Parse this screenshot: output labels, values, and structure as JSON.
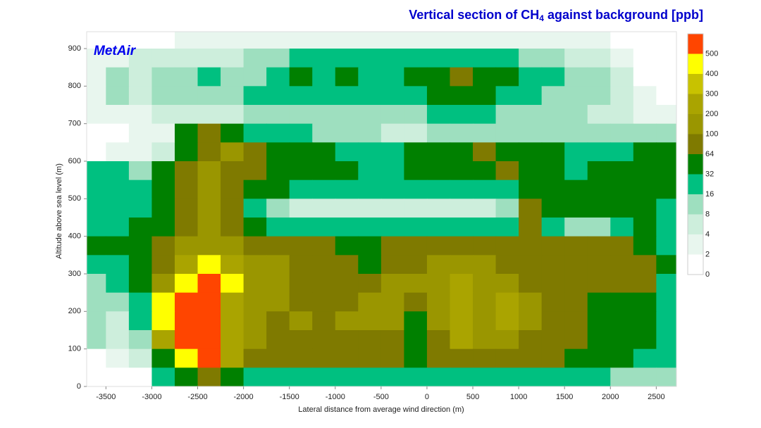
{
  "chart_data": {
    "type": "contour",
    "title": {
      "text": "Vertical section of CH",
      "subscript": "4",
      "rest": " against background [ppb]"
    },
    "logo": "MetAir",
    "xlabel": "Lateral distance from average wind direction (m)",
    "ylabel": "Altitude above sea level (m)",
    "xlim": [
      -3710,
      2720
    ],
    "ylim": [
      0,
      945
    ],
    "xticks": [
      -3500,
      -3000,
      -2500,
      -2000,
      -1500,
      -1000,
      -500,
      0,
      500,
      1000,
      1500,
      2000,
      2500
    ],
    "yticks": [
      0,
      100,
      200,
      300,
      400,
      500,
      600,
      700,
      800,
      900
    ],
    "grid": false,
    "colorbar": {
      "levels": [
        0,
        2,
        4,
        8,
        16,
        32,
        64,
        100,
        200,
        300,
        400,
        500
      ],
      "colors": [
        "#ffffff",
        "#e8f6ee",
        "#cdeedc",
        "#9edfbf",
        "#00c080",
        "#008000",
        "#7f7a00",
        "#9a9600",
        "#aaa400",
        "#c8c200",
        "#ffff00",
        "#ff4500"
      ]
    },
    "x": [
      -3625,
      -3375,
      -3125,
      -2875,
      -2625,
      -2375,
      -2125,
      -1875,
      -1625,
      -1375,
      -1125,
      -875,
      -625,
      -375,
      -125,
      125,
      375,
      625,
      875,
      1125,
      1375,
      1625,
      1875,
      2125,
      2375,
      2625
    ],
    "y": [
      925,
      875,
      825,
      775,
      725,
      675,
      625,
      575,
      525,
      475,
      425,
      375,
      325,
      275,
      225,
      175,
      125,
      75,
      25
    ],
    "z": [
      [
        1,
        1,
        1,
        1,
        3,
        3,
        3,
        3,
        3,
        3,
        3,
        3,
        3,
        3,
        3,
        3,
        3,
        3,
        3,
        3,
        3,
        3,
        3,
        1,
        1,
        1
      ],
      [
        3,
        3,
        6,
        6,
        6,
        6,
        6,
        12,
        12,
        24,
        24,
        24,
        24,
        24,
        24,
        24,
        24,
        24,
        24,
        12,
        12,
        6,
        6,
        3,
        1,
        1
      ],
      [
        3,
        12,
        6,
        12,
        12,
        24,
        12,
        12,
        24,
        48,
        24,
        48,
        24,
        24,
        48,
        48,
        80,
        48,
        48,
        24,
        24,
        12,
        12,
        6,
        1,
        1
      ],
      [
        3,
        12,
        6,
        12,
        12,
        12,
        12,
        24,
        24,
        24,
        24,
        24,
        24,
        24,
        24,
        48,
        48,
        48,
        24,
        24,
        12,
        12,
        12,
        6,
        3,
        1
      ],
      [
        3,
        3,
        3,
        6,
        6,
        6,
        6,
        12,
        12,
        12,
        12,
        12,
        12,
        12,
        12,
        24,
        24,
        24,
        12,
        12,
        12,
        12,
        6,
        6,
        3,
        3
      ],
      [
        1,
        1,
        3,
        3,
        48,
        80,
        48,
        24,
        24,
        24,
        12,
        12,
        12,
        6,
        6,
        12,
        12,
        12,
        12,
        12,
        12,
        12,
        12,
        12,
        12,
        12
      ],
      [
        1,
        3,
        3,
        6,
        48,
        80,
        150,
        80,
        48,
        48,
        48,
        24,
        24,
        24,
        48,
        48,
        48,
        80,
        48,
        48,
        48,
        24,
        24,
        24,
        48,
        48
      ],
      [
        24,
        24,
        12,
        48,
        80,
        150,
        80,
        80,
        48,
        48,
        48,
        48,
        24,
        24,
        48,
        48,
        48,
        48,
        80,
        48,
        48,
        24,
        48,
        48,
        48,
        48
      ],
      [
        24,
        24,
        24,
        48,
        80,
        150,
        80,
        48,
        48,
        24,
        24,
        24,
        24,
        24,
        24,
        24,
        24,
        24,
        24,
        48,
        48,
        48,
        48,
        48,
        48,
        48
      ],
      [
        24,
        24,
        24,
        48,
        80,
        150,
        80,
        24,
        12,
        6,
        6,
        6,
        6,
        6,
        6,
        6,
        6,
        6,
        12,
        80,
        48,
        48,
        48,
        48,
        48,
        24
      ],
      [
        24,
        24,
        48,
        48,
        80,
        150,
        80,
        48,
        24,
        24,
        24,
        24,
        24,
        24,
        24,
        24,
        24,
        24,
        24,
        80,
        24,
        12,
        12,
        24,
        48,
        24
      ],
      [
        48,
        48,
        48,
        80,
        150,
        150,
        150,
        80,
        80,
        80,
        80,
        48,
        48,
        80,
        80,
        80,
        80,
        80,
        80,
        80,
        80,
        80,
        80,
        80,
        48,
        24
      ],
      [
        24,
        24,
        48,
        80,
        250,
        450,
        250,
        150,
        150,
        80,
        80,
        80,
        48,
        80,
        80,
        150,
        150,
        150,
        80,
        80,
        80,
        80,
        80,
        80,
        80,
        48
      ],
      [
        12,
        24,
        48,
        150,
        450,
        600,
        450,
        150,
        150,
        80,
        80,
        80,
        80,
        150,
        150,
        150,
        250,
        150,
        150,
        80,
        80,
        80,
        80,
        80,
        80,
        24
      ],
      [
        12,
        12,
        24,
        450,
        600,
        600,
        250,
        150,
        150,
        80,
        80,
        80,
        150,
        150,
        80,
        150,
        250,
        150,
        250,
        150,
        80,
        80,
        48,
        48,
        48,
        24
      ],
      [
        12,
        6,
        24,
        450,
        600,
        600,
        250,
        150,
        80,
        150,
        80,
        150,
        150,
        150,
        48,
        150,
        250,
        150,
        250,
        150,
        80,
        80,
        48,
        48,
        48,
        24
      ],
      [
        12,
        6,
        12,
        250,
        600,
        600,
        250,
        150,
        80,
        80,
        80,
        80,
        80,
        80,
        48,
        80,
        250,
        150,
        150,
        80,
        80,
        80,
        48,
        48,
        48,
        24
      ],
      [
        1,
        3,
        6,
        48,
        450,
        600,
        250,
        80,
        80,
        80,
        80,
        80,
        80,
        80,
        48,
        80,
        80,
        80,
        80,
        80,
        80,
        48,
        48,
        48,
        24,
        24
      ],
      [
        1,
        1,
        1,
        24,
        48,
        80,
        48,
        24,
        24,
        24,
        24,
        24,
        24,
        24,
        24,
        24,
        24,
        24,
        24,
        24,
        24,
        24,
        24,
        12,
        12,
        12
      ]
    ]
  }
}
